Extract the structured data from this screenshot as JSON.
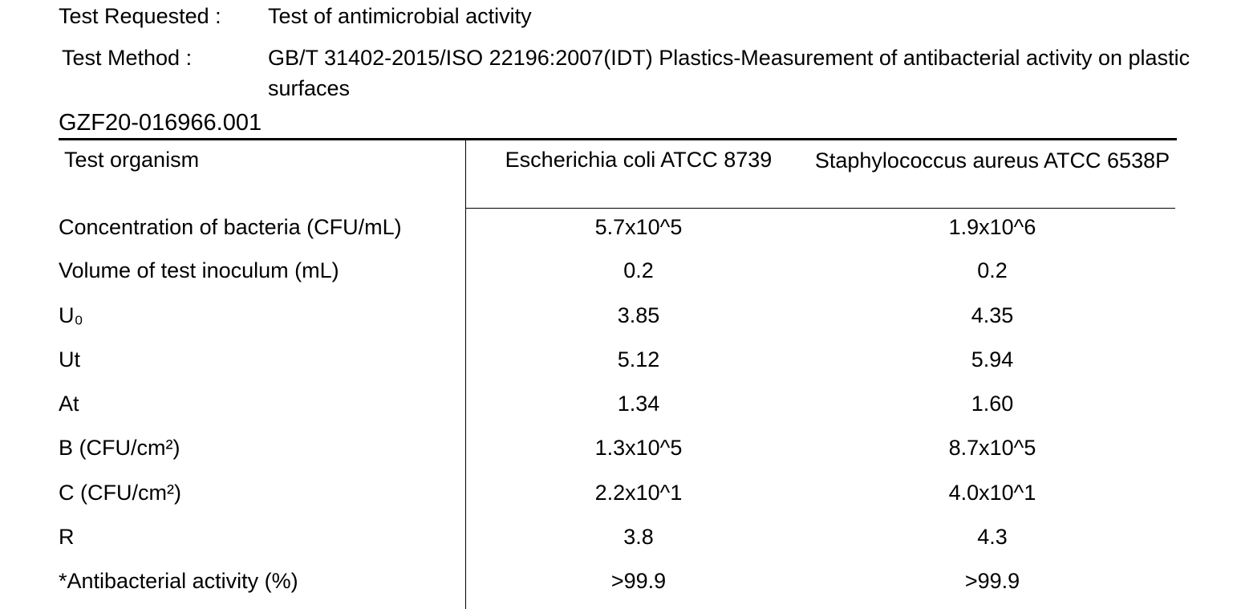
{
  "header": {
    "test_requested_label": "Test Requested :",
    "test_requested_value": "Test of antimicrobial activity",
    "test_method_label": "Test Method :",
    "test_method_value": "GB/T 31402-2015/ISO 22196:2007(IDT) Plastics-Measurement of antibacterial activity on plastic surfaces"
  },
  "report_id": "GZF20-016966.001",
  "table": {
    "header": {
      "parameter": "Test organism",
      "col1": "Escherichia coli  ATCC 8739",
      "col2": "Staphylococcus aureus  ATCC 6538P"
    },
    "rows": [
      {
        "parameter": "Concentration of bacteria (CFU/mL)",
        "col1": "5.7x10^5",
        "col2": "1.9x10^6"
      },
      {
        "parameter": "Volume of test inoculum (mL)",
        "col1": "0.2",
        "col2": "0.2"
      },
      {
        "parameter": "U₀",
        "col1": "3.85",
        "col2": "4.35"
      },
      {
        "parameter": "Ut",
        "col1": "5.12",
        "col2": "5.94"
      },
      {
        "parameter": "At",
        "col1": "1.34",
        "col2": "1.60"
      },
      {
        "parameter": "B (CFU/cm²)",
        "col1": "1.3x10^5",
        "col2": "8.7x10^5"
      },
      {
        "parameter": "C (CFU/cm²)",
        "col1": "2.2x10^1",
        "col2": "4.0x10^1"
      },
      {
        "parameter": "R",
        "col1": "3.8",
        "col2": "4.3"
      },
      {
        "parameter": "*Antibacterial activity (%)",
        "col1": ">99.9",
        "col2": ">99.9"
      }
    ]
  }
}
